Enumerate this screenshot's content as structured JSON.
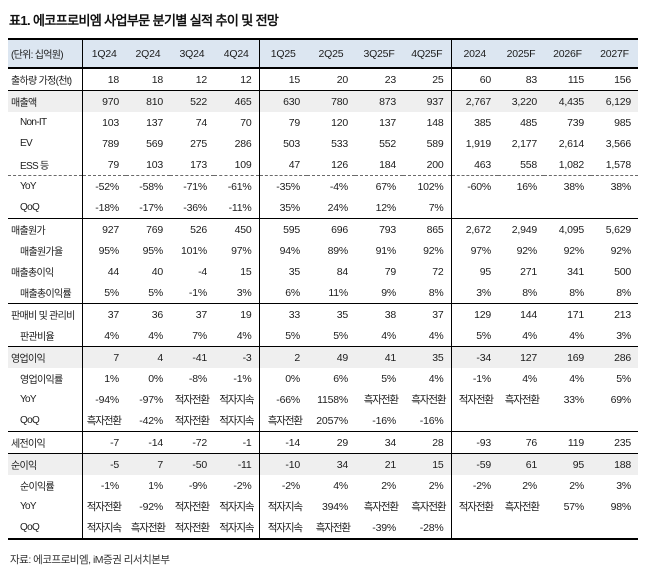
{
  "title": "표1. 에코프로비엠 사업부문 분기별 실적 추이 및 전망",
  "source": "자료: 에코프로비엠, iM증권 리서치본부",
  "colors": {
    "header_bg": "#dce6f1",
    "shaded_bg": "#efefef"
  },
  "table": {
    "unit_label": "(단위: 십억원)",
    "columns": [
      "1Q24",
      "2Q24",
      "3Q24",
      "4Q24",
      "1Q25",
      "2Q25",
      "3Q25F",
      "4Q25F",
      "2024",
      "2025F",
      "2026F",
      "2027F"
    ],
    "rows": [
      {
        "label": "출하량 가정(천t)",
        "indent": false,
        "shaded": false,
        "top": null,
        "values": [
          "18",
          "18",
          "12",
          "12",
          "15",
          "20",
          "23",
          "25",
          "60",
          "83",
          "115",
          "156"
        ]
      },
      {
        "label": "매출액",
        "indent": false,
        "shaded": true,
        "top": "solid",
        "values": [
          "970",
          "810",
          "522",
          "465",
          "630",
          "780",
          "873",
          "937",
          "2,767",
          "3,220",
          "4,435",
          "6,129"
        ]
      },
      {
        "label": "Non-IT",
        "indent": true,
        "shaded": false,
        "top": null,
        "values": [
          "103",
          "137",
          "74",
          "70",
          "79",
          "120",
          "137",
          "148",
          "385",
          "485",
          "739",
          "985"
        ]
      },
      {
        "label": "EV",
        "indent": true,
        "shaded": false,
        "top": null,
        "values": [
          "789",
          "569",
          "275",
          "286",
          "503",
          "533",
          "552",
          "589",
          "1,919",
          "2,177",
          "2,614",
          "3,566"
        ]
      },
      {
        "label": "ESS 등",
        "indent": true,
        "shaded": false,
        "top": null,
        "values": [
          "79",
          "103",
          "173",
          "109",
          "47",
          "126",
          "184",
          "200",
          "463",
          "558",
          "1,082",
          "1,578"
        ]
      },
      {
        "label": "YoY",
        "indent": true,
        "shaded": false,
        "top": "dashed",
        "values": [
          "-52%",
          "-58%",
          "-71%",
          "-61%",
          "-35%",
          "-4%",
          "67%",
          "102%",
          "-60%",
          "16%",
          "38%",
          "38%"
        ]
      },
      {
        "label": "QoQ",
        "indent": true,
        "shaded": false,
        "top": null,
        "values": [
          "-18%",
          "-17%",
          "-36%",
          "-11%",
          "35%",
          "24%",
          "12%",
          "7%",
          "",
          "",
          "",
          ""
        ]
      },
      {
        "label": "매출원가",
        "indent": false,
        "shaded": false,
        "top": "solid",
        "values": [
          "927",
          "769",
          "526",
          "450",
          "595",
          "696",
          "793",
          "865",
          "2,672",
          "2,949",
          "4,095",
          "5,629"
        ]
      },
      {
        "label": "매출원가율",
        "indent": true,
        "shaded": false,
        "top": null,
        "values": [
          "95%",
          "95%",
          "101%",
          "97%",
          "94%",
          "89%",
          "91%",
          "92%",
          "97%",
          "92%",
          "92%",
          "92%"
        ]
      },
      {
        "label": "매출총이익",
        "indent": false,
        "shaded": false,
        "top": null,
        "values": [
          "44",
          "40",
          "-4",
          "15",
          "35",
          "84",
          "79",
          "72",
          "95",
          "271",
          "341",
          "500"
        ]
      },
      {
        "label": "매출총이익률",
        "indent": true,
        "shaded": false,
        "top": null,
        "values": [
          "5%",
          "5%",
          "-1%",
          "3%",
          "6%",
          "11%",
          "9%",
          "8%",
          "3%",
          "8%",
          "8%",
          "8%"
        ]
      },
      {
        "label": "판매비 및 관리비",
        "indent": false,
        "shaded": false,
        "top": "solid",
        "values": [
          "37",
          "36",
          "37",
          "19",
          "33",
          "35",
          "38",
          "37",
          "129",
          "144",
          "171",
          "213"
        ]
      },
      {
        "label": "판관비율",
        "indent": true,
        "shaded": false,
        "top": null,
        "values": [
          "4%",
          "4%",
          "7%",
          "4%",
          "5%",
          "5%",
          "4%",
          "4%",
          "5%",
          "4%",
          "4%",
          "3%"
        ]
      },
      {
        "label": "영업이익",
        "indent": false,
        "shaded": true,
        "top": "solid",
        "values": [
          "7",
          "4",
          "-41",
          "-3",
          "2",
          "49",
          "41",
          "35",
          "-34",
          "127",
          "169",
          "286"
        ]
      },
      {
        "label": "영업이익률",
        "indent": true,
        "shaded": false,
        "top": null,
        "values": [
          "1%",
          "0%",
          "-8%",
          "-1%",
          "0%",
          "6%",
          "5%",
          "4%",
          "-1%",
          "4%",
          "4%",
          "5%"
        ]
      },
      {
        "label": "YoY",
        "indent": true,
        "shaded": false,
        "top": null,
        "values": [
          "-94%",
          "-97%",
          "적자전환",
          "적자지속",
          "-66%",
          "1158%",
          "흑자전환",
          "흑자전환",
          "적자전환",
          "흑자전환",
          "33%",
          "69%"
        ]
      },
      {
        "label": "QoQ",
        "indent": true,
        "shaded": false,
        "top": null,
        "values": [
          "흑자전환",
          "-42%",
          "적자전환",
          "적자지속",
          "흑자전환",
          "2057%",
          "-16%",
          "-16%",
          "",
          "",
          "",
          ""
        ]
      },
      {
        "label": "세전이익",
        "indent": false,
        "shaded": false,
        "top": "solid",
        "values": [
          "-7",
          "-14",
          "-72",
          "-1",
          "-14",
          "29",
          "34",
          "28",
          "-93",
          "76",
          "119",
          "235"
        ]
      },
      {
        "label": "순이익",
        "indent": false,
        "shaded": true,
        "top": "solid",
        "values": [
          "-5",
          "7",
          "-50",
          "-11",
          "-10",
          "34",
          "21",
          "15",
          "-59",
          "61",
          "95",
          "188"
        ]
      },
      {
        "label": "순이익률",
        "indent": true,
        "shaded": false,
        "top": null,
        "values": [
          "-1%",
          "1%",
          "-9%",
          "-2%",
          "-2%",
          "4%",
          "2%",
          "2%",
          "-2%",
          "2%",
          "2%",
          "3%"
        ]
      },
      {
        "label": "YoY",
        "indent": true,
        "shaded": false,
        "top": null,
        "values": [
          "적자전환",
          "-92%",
          "적자전환",
          "적자지속",
          "적자지속",
          "394%",
          "흑자전환",
          "흑자전환",
          "적자전환",
          "흑자전환",
          "57%",
          "98%"
        ]
      },
      {
        "label": "QoQ",
        "indent": true,
        "shaded": false,
        "top": null,
        "values": [
          "적자지속",
          "흑자전환",
          "적자전환",
          "적자지속",
          "적자지속",
          "흑자전환",
          "-39%",
          "-28%",
          "",
          "",
          "",
          ""
        ]
      }
    ]
  }
}
